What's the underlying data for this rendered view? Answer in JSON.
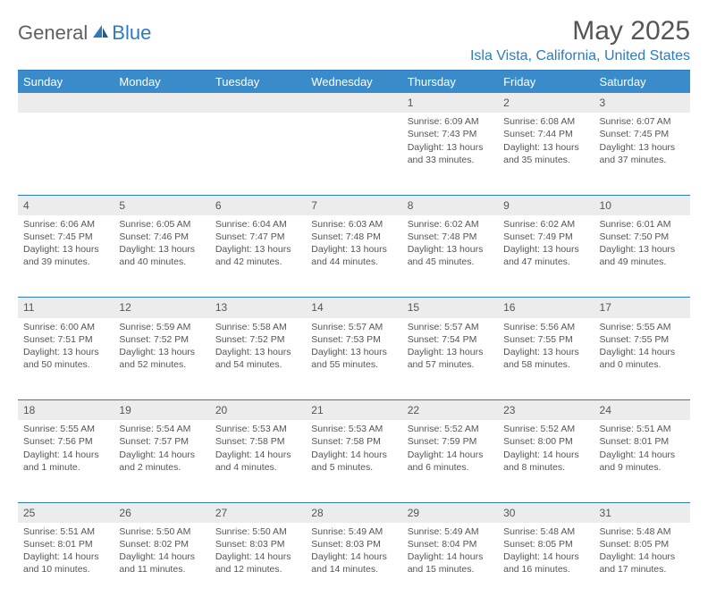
{
  "logo": {
    "general": "General",
    "blue": "Blue"
  },
  "title": "May 2025",
  "location": "Isla Vista, California, United States",
  "colors": {
    "header_bg": "#3a8bc9",
    "accent": "#2e7ac0",
    "daynum_bg": "#ececec",
    "text": "#555555",
    "white": "#ffffff"
  },
  "day_headers": [
    "Sunday",
    "Monday",
    "Tuesday",
    "Wednesday",
    "Thursday",
    "Friday",
    "Saturday"
  ],
  "weeks": [
    [
      null,
      null,
      null,
      null,
      {
        "n": "1",
        "sr": "Sunrise: 6:09 AM",
        "ss": "Sunset: 7:43 PM",
        "dl1": "Daylight: 13 hours",
        "dl2": "and 33 minutes."
      },
      {
        "n": "2",
        "sr": "Sunrise: 6:08 AM",
        "ss": "Sunset: 7:44 PM",
        "dl1": "Daylight: 13 hours",
        "dl2": "and 35 minutes."
      },
      {
        "n": "3",
        "sr": "Sunrise: 6:07 AM",
        "ss": "Sunset: 7:45 PM",
        "dl1": "Daylight: 13 hours",
        "dl2": "and 37 minutes."
      }
    ],
    [
      {
        "n": "4",
        "sr": "Sunrise: 6:06 AM",
        "ss": "Sunset: 7:45 PM",
        "dl1": "Daylight: 13 hours",
        "dl2": "and 39 minutes."
      },
      {
        "n": "5",
        "sr": "Sunrise: 6:05 AM",
        "ss": "Sunset: 7:46 PM",
        "dl1": "Daylight: 13 hours",
        "dl2": "and 40 minutes."
      },
      {
        "n": "6",
        "sr": "Sunrise: 6:04 AM",
        "ss": "Sunset: 7:47 PM",
        "dl1": "Daylight: 13 hours",
        "dl2": "and 42 minutes."
      },
      {
        "n": "7",
        "sr": "Sunrise: 6:03 AM",
        "ss": "Sunset: 7:48 PM",
        "dl1": "Daylight: 13 hours",
        "dl2": "and 44 minutes."
      },
      {
        "n": "8",
        "sr": "Sunrise: 6:02 AM",
        "ss": "Sunset: 7:48 PM",
        "dl1": "Daylight: 13 hours",
        "dl2": "and 45 minutes."
      },
      {
        "n": "9",
        "sr": "Sunrise: 6:02 AM",
        "ss": "Sunset: 7:49 PM",
        "dl1": "Daylight: 13 hours",
        "dl2": "and 47 minutes."
      },
      {
        "n": "10",
        "sr": "Sunrise: 6:01 AM",
        "ss": "Sunset: 7:50 PM",
        "dl1": "Daylight: 13 hours",
        "dl2": "and 49 minutes."
      }
    ],
    [
      {
        "n": "11",
        "sr": "Sunrise: 6:00 AM",
        "ss": "Sunset: 7:51 PM",
        "dl1": "Daylight: 13 hours",
        "dl2": "and 50 minutes."
      },
      {
        "n": "12",
        "sr": "Sunrise: 5:59 AM",
        "ss": "Sunset: 7:52 PM",
        "dl1": "Daylight: 13 hours",
        "dl2": "and 52 minutes."
      },
      {
        "n": "13",
        "sr": "Sunrise: 5:58 AM",
        "ss": "Sunset: 7:52 PM",
        "dl1": "Daylight: 13 hours",
        "dl2": "and 54 minutes."
      },
      {
        "n": "14",
        "sr": "Sunrise: 5:57 AM",
        "ss": "Sunset: 7:53 PM",
        "dl1": "Daylight: 13 hours",
        "dl2": "and 55 minutes."
      },
      {
        "n": "15",
        "sr": "Sunrise: 5:57 AM",
        "ss": "Sunset: 7:54 PM",
        "dl1": "Daylight: 13 hours",
        "dl2": "and 57 minutes."
      },
      {
        "n": "16",
        "sr": "Sunrise: 5:56 AM",
        "ss": "Sunset: 7:55 PM",
        "dl1": "Daylight: 13 hours",
        "dl2": "and 58 minutes."
      },
      {
        "n": "17",
        "sr": "Sunrise: 5:55 AM",
        "ss": "Sunset: 7:55 PM",
        "dl1": "Daylight: 14 hours",
        "dl2": "and 0 minutes."
      }
    ],
    [
      {
        "n": "18",
        "sr": "Sunrise: 5:55 AM",
        "ss": "Sunset: 7:56 PM",
        "dl1": "Daylight: 14 hours",
        "dl2": "and 1 minute."
      },
      {
        "n": "19",
        "sr": "Sunrise: 5:54 AM",
        "ss": "Sunset: 7:57 PM",
        "dl1": "Daylight: 14 hours",
        "dl2": "and 2 minutes."
      },
      {
        "n": "20",
        "sr": "Sunrise: 5:53 AM",
        "ss": "Sunset: 7:58 PM",
        "dl1": "Daylight: 14 hours",
        "dl2": "and 4 minutes."
      },
      {
        "n": "21",
        "sr": "Sunrise: 5:53 AM",
        "ss": "Sunset: 7:58 PM",
        "dl1": "Daylight: 14 hours",
        "dl2": "and 5 minutes."
      },
      {
        "n": "22",
        "sr": "Sunrise: 5:52 AM",
        "ss": "Sunset: 7:59 PM",
        "dl1": "Daylight: 14 hours",
        "dl2": "and 6 minutes."
      },
      {
        "n": "23",
        "sr": "Sunrise: 5:52 AM",
        "ss": "Sunset: 8:00 PM",
        "dl1": "Daylight: 14 hours",
        "dl2": "and 8 minutes."
      },
      {
        "n": "24",
        "sr": "Sunrise: 5:51 AM",
        "ss": "Sunset: 8:01 PM",
        "dl1": "Daylight: 14 hours",
        "dl2": "and 9 minutes."
      }
    ],
    [
      {
        "n": "25",
        "sr": "Sunrise: 5:51 AM",
        "ss": "Sunset: 8:01 PM",
        "dl1": "Daylight: 14 hours",
        "dl2": "and 10 minutes."
      },
      {
        "n": "26",
        "sr": "Sunrise: 5:50 AM",
        "ss": "Sunset: 8:02 PM",
        "dl1": "Daylight: 14 hours",
        "dl2": "and 11 minutes."
      },
      {
        "n": "27",
        "sr": "Sunrise: 5:50 AM",
        "ss": "Sunset: 8:03 PM",
        "dl1": "Daylight: 14 hours",
        "dl2": "and 12 minutes."
      },
      {
        "n": "28",
        "sr": "Sunrise: 5:49 AM",
        "ss": "Sunset: 8:03 PM",
        "dl1": "Daylight: 14 hours",
        "dl2": "and 14 minutes."
      },
      {
        "n": "29",
        "sr": "Sunrise: 5:49 AM",
        "ss": "Sunset: 8:04 PM",
        "dl1": "Daylight: 14 hours",
        "dl2": "and 15 minutes."
      },
      {
        "n": "30",
        "sr": "Sunrise: 5:48 AM",
        "ss": "Sunset: 8:05 PM",
        "dl1": "Daylight: 14 hours",
        "dl2": "and 16 minutes."
      },
      {
        "n": "31",
        "sr": "Sunrise: 5:48 AM",
        "ss": "Sunset: 8:05 PM",
        "dl1": "Daylight: 14 hours",
        "dl2": "and 17 minutes."
      }
    ]
  ]
}
